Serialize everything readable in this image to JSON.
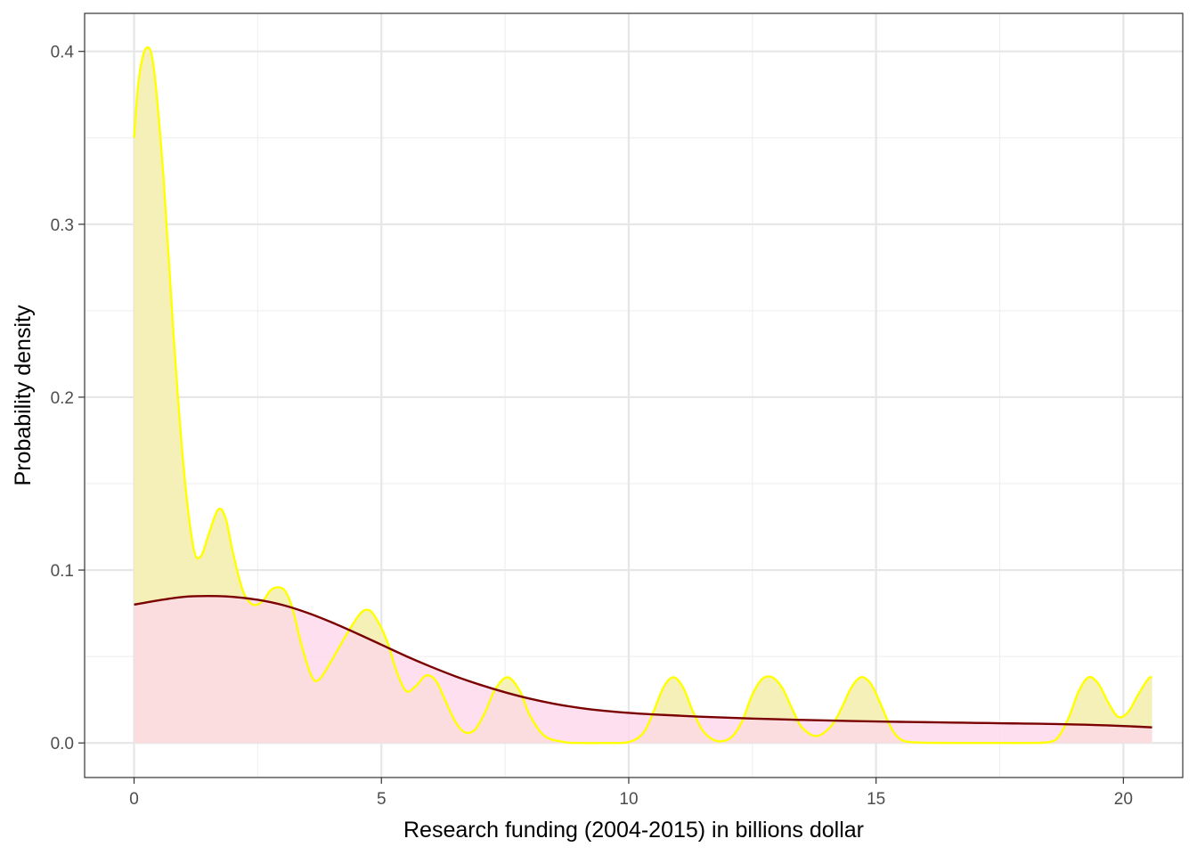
{
  "chart_data": {
    "type": "area",
    "xlabel": "Research funding (2004-2015) in billions dollar",
    "ylabel": "Probability density",
    "xlim": [
      -1.0,
      21.2
    ],
    "ylim": [
      -0.02,
      0.422
    ],
    "x_ticks": [
      0,
      5,
      10,
      15,
      20
    ],
    "x_tick_labels": [
      "0",
      "5",
      "10",
      "15",
      "20"
    ],
    "y_ticks": [
      0.0,
      0.1,
      0.2,
      0.3,
      0.4
    ],
    "y_tick_labels": [
      "0.0",
      "0.1",
      "0.2",
      "0.3",
      "0.4"
    ],
    "grid": true,
    "legend": "none",
    "series": [
      {
        "fill": "#f5f0b8",
        "line": "#ffff00",
        "x": [
          0,
          0.1,
          0.25,
          0.4,
          0.6,
          0.8,
          1.0,
          1.2,
          1.35,
          1.5,
          1.7,
          1.85,
          2.0,
          2.2,
          2.4,
          2.6,
          2.75,
          2.9,
          3.05,
          3.2,
          3.4,
          3.6,
          3.75,
          4.0,
          4.3,
          4.55,
          4.7,
          4.85,
          5.1,
          5.3,
          5.5,
          5.7,
          5.9,
          6.1,
          6.3,
          6.5,
          6.7,
          6.9,
          7.1,
          7.3,
          7.55,
          7.8,
          8.0,
          8.3,
          8.7,
          9.0,
          9.5,
          10.0,
          10.3,
          10.5,
          10.7,
          10.9,
          11.1,
          11.3,
          11.5,
          11.7,
          11.9,
          12.1,
          12.3,
          12.5,
          12.7,
          12.9,
          13.1,
          13.3,
          13.5,
          13.8,
          14.1,
          14.3,
          14.5,
          14.7,
          14.9,
          15.1,
          15.3,
          15.5,
          15.8,
          16.5,
          17.0,
          17.5,
          18.0,
          18.5,
          18.7,
          18.9,
          19.1,
          19.3,
          19.5,
          19.7,
          19.9,
          20.1,
          20.3,
          20.5,
          20.58
        ],
        "y": [
          0.35,
          0.385,
          0.402,
          0.39,
          0.325,
          0.235,
          0.16,
          0.113,
          0.108,
          0.12,
          0.135,
          0.13,
          0.11,
          0.088,
          0.08,
          0.082,
          0.088,
          0.09,
          0.088,
          0.078,
          0.055,
          0.038,
          0.037,
          0.048,
          0.063,
          0.074,
          0.077,
          0.074,
          0.06,
          0.042,
          0.03,
          0.033,
          0.039,
          0.036,
          0.024,
          0.012,
          0.006,
          0.008,
          0.018,
          0.031,
          0.038,
          0.03,
          0.016,
          0.004,
          0.0005,
          0.0,
          0.0,
          0.0005,
          0.006,
          0.018,
          0.032,
          0.038,
          0.032,
          0.018,
          0.007,
          0.002,
          0.001,
          0.004,
          0.013,
          0.028,
          0.037,
          0.038,
          0.032,
          0.02,
          0.009,
          0.004,
          0.01,
          0.02,
          0.032,
          0.038,
          0.034,
          0.022,
          0.009,
          0.002,
          0.0003,
          0.0,
          0.0,
          0.0,
          0.0,
          0.0005,
          0.004,
          0.015,
          0.03,
          0.038,
          0.034,
          0.023,
          0.015,
          0.018,
          0.028,
          0.037,
          0.038
        ]
      },
      {
        "fill": "#fcd6ea",
        "line": "#7a0000",
        "x": [
          0,
          0.5,
          1.0,
          1.5,
          2.0,
          2.5,
          3.0,
          3.5,
          4.0,
          4.5,
          5.0,
          5.5,
          6.0,
          6.5,
          7.0,
          7.5,
          8.0,
          8.5,
          9.0,
          9.5,
          10.0,
          10.5,
          11.0,
          11.5,
          12.0,
          12.5,
          13.0,
          13.5,
          14.0,
          14.5,
          15.0,
          15.5,
          16.0,
          16.5,
          17.0,
          17.5,
          18.0,
          18.5,
          19.0,
          19.5,
          20.0,
          20.58
        ],
        "y": [
          0.08,
          0.0825,
          0.0845,
          0.085,
          0.0845,
          0.0828,
          0.0798,
          0.0753,
          0.0697,
          0.0634,
          0.0568,
          0.0502,
          0.0441,
          0.0385,
          0.0336,
          0.0293,
          0.0256,
          0.0226,
          0.0203,
          0.0186,
          0.0174,
          0.0165,
          0.0158,
          0.0151,
          0.0146,
          0.0141,
          0.0137,
          0.0133,
          0.013,
          0.0127,
          0.0124,
          0.0122,
          0.012,
          0.0118,
          0.0116,
          0.0114,
          0.0112,
          0.011,
          0.0107,
          0.0103,
          0.0098,
          0.009
        ]
      }
    ]
  }
}
